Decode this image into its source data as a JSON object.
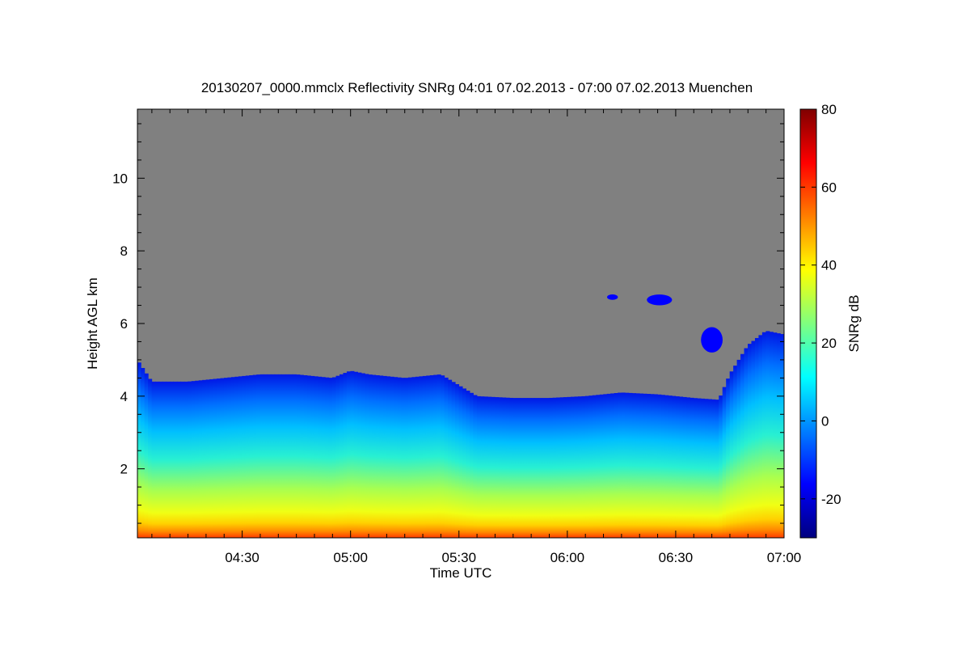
{
  "chart_data": {
    "type": "heatmap",
    "title": "20130207_0000.mmclx Reflectivity SNRg   04:01 07.02.2013 - 07:00 07.02.2013 Muenchen",
    "xlabel": "Time UTC",
    "ylabel": "Height AGL km",
    "x_tick_labels": [
      "04:30",
      "05:00",
      "05:30",
      "06:00",
      "06:30",
      "07:00"
    ],
    "x_tick_values_min": [
      270,
      300,
      330,
      360,
      390,
      420
    ],
    "xlim_min": [
      241,
      420
    ],
    "y_ticks": [
      2,
      4,
      6,
      8,
      10
    ],
    "ylim": [
      0.1,
      11.9
    ],
    "grid": false,
    "background_color": "#808080",
    "colorbar": {
      "label": "SNRg dB",
      "ticks": [
        -20,
        0,
        20,
        40,
        60,
        80
      ],
      "range": [
        -30,
        80
      ],
      "colormap": "jet",
      "colors": [
        "#00007f",
        "#0000ff",
        "#007fff",
        "#00ffff",
        "#7fff7f",
        "#ffff00",
        "#ff7f00",
        "#ff0000",
        "#7f0000"
      ]
    },
    "echo_top_km": {
      "time_min": [
        241,
        245,
        255,
        265,
        275,
        285,
        295,
        300,
        305,
        315,
        325,
        330,
        335,
        345,
        355,
        365,
        375,
        385,
        395,
        402,
        405,
        410,
        415,
        420
      ],
      "height": [
        5.0,
        4.4,
        4.4,
        4.5,
        4.6,
        4.6,
        4.5,
        4.7,
        4.6,
        4.5,
        4.6,
        4.3,
        4.0,
        3.95,
        3.95,
        4.0,
        4.1,
        4.05,
        3.95,
        3.9,
        4.6,
        5.4,
        5.8,
        5.7
      ]
    },
    "cloud_patches_km": [
      {
        "t_start": 397,
        "t_end": 403,
        "h_min": 5.2,
        "h_max": 5.9
      },
      {
        "t_start": 382,
        "t_end": 389,
        "h_min": 6.5,
        "h_max": 6.8
      },
      {
        "t_start": 371,
        "t_end": 374,
        "h_min": 6.65,
        "h_max": 6.8
      }
    ]
  }
}
